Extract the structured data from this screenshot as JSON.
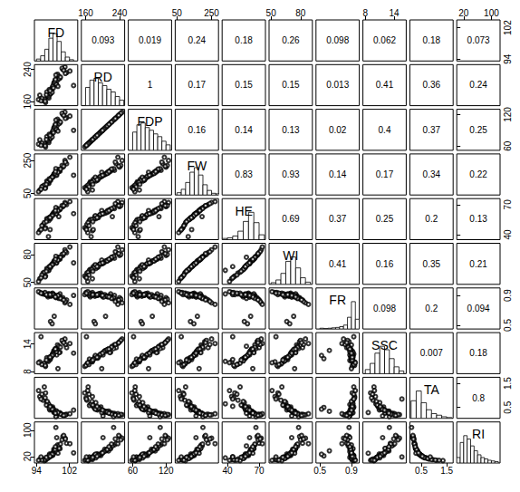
{
  "chart_data": {
    "type": "scatter_matrix",
    "marker": "open_circle",
    "color": "#000000",
    "variables": [
      {
        "name": "FD",
        "lim": [
          93.5,
          104
        ],
        "ticks": [
          94,
          102
        ],
        "values": [
          97.5,
          98.2,
          96.8,
          99.1,
          95.6,
          100.4,
          97.9,
          98.6,
          96.2,
          101.3,
          97.2,
          99.7,
          94.8,
          98.9,
          97.0,
          100.9,
          96.5,
          98.4,
          99.4,
          97.7,
          95.9,
          98.0,
          102.1,
          97.3,
          99.0,
          96.1,
          98.7,
          97.6,
          100.2,
          96.9,
          98.3,
          99.5,
          95.3,
          98.1,
          97.4,
          101.0,
          96.6,
          98.8,
          99.8,
          97.1,
          94.5,
          98.5,
          100.6,
          96.4,
          99.2,
          97.8,
          95.1,
          98.6,
          97.3,
          103.0
        ],
        "hist": {
          "bins": [
            94,
            95,
            96,
            97,
            98,
            99,
            100,
            101,
            102,
            103
          ],
          "counts": [
            3,
            8,
            18,
            35,
            42,
            30,
            14,
            6,
            2
          ]
        }
      },
      {
        "name": "RD",
        "lim": [
          150,
          252
        ],
        "ticks": [
          160,
          240
        ],
        "values": [
          182,
          205,
          171,
          228,
          163,
          240,
          196,
          214,
          158,
          232,
          188,
          219,
          176,
          201,
          169,
          246,
          184,
          209,
          223,
          192,
          166,
          199,
          236,
          178,
          212,
          161,
          226,
          186,
          243,
          173,
          207,
          217,
          168,
          194,
          180,
          230,
          175,
          203,
          221,
          190,
          165,
          211,
          238,
          177,
          198,
          183,
          162,
          215,
          187,
          200
        ],
        "hist": {
          "bins": [
            160,
            170,
            180,
            190,
            200,
            210,
            220,
            230,
            240,
            250
          ],
          "counts": [
            20,
            28,
            30,
            25,
            22,
            18,
            15,
            10,
            6
          ]
        }
      },
      {
        "name": "FDP",
        "lim": [
          52,
          130
        ],
        "ticks": [
          60,
          120
        ],
        "values": [
          76.5,
          93.8,
          68.3,
          111,
          62.3,
          120,
          87,
          100.5,
          58.5,
          114,
          81,
          104.3,
          72,
          90.8,
          66.8,
          124.5,
          78,
          96.8,
          107.3,
          84,
          64.5,
          89.3,
          117,
          73.5,
          99,
          60.8,
          109.5,
          79.5,
          122.3,
          69.8,
          95.3,
          102.8,
          66,
          85.5,
          75,
          112.5,
          71.3,
          92.3,
          105.8,
          82.5,
          63.8,
          98.3,
          118.5,
          72.8,
          88.5,
          77.3,
          61.5,
          101.3,
          80.3,
          90
        ],
        "hist": {
          "bins": [
            60,
            67.5,
            75,
            82.5,
            90,
            97.5,
            105,
            112.5,
            120,
            127.5
          ],
          "counts": [
            20,
            28,
            30,
            25,
            22,
            18,
            15,
            10,
            6
          ]
        }
      },
      {
        "name": "FW",
        "lim": [
          40,
          290
        ],
        "ticks": [
          50,
          250
        ],
        "values": [
          140,
          165,
          120,
          190,
          95,
          210,
          150,
          175,
          85,
          230,
          130,
          185,
          70,
          160,
          110,
          250,
          125,
          170,
          195,
          145,
          100,
          155,
          270,
          135,
          180,
          80,
          200,
          142,
          220,
          115,
          168,
          188,
          90,
          152,
          128,
          240,
          118,
          162,
          198,
          138,
          60,
          172,
          215,
          105,
          178,
          148,
          75,
          182,
          133,
          160
        ],
        "hist": {
          "bins": [
            50,
            75,
            100,
            125,
            150,
            175,
            200,
            225,
            250,
            275,
            300
          ],
          "counts": [
            4,
            10,
            22,
            40,
            48,
            35,
            18,
            8,
            3,
            2
          ]
        }
      },
      {
        "name": "HE",
        "lim": [
          35,
          76
        ],
        "ticks": [
          40,
          70
        ],
        "values": [
          58,
          62,
          55,
          66,
          50,
          68,
          60,
          63,
          47,
          70,
          57,
          65,
          44,
          61,
          54,
          72,
          56,
          62,
          58,
          59,
          52,
          61,
          73,
          45,
          64,
          46,
          67,
          58,
          69,
          38,
          62,
          65,
          49,
          60,
          56,
          71,
          55,
          61,
          66,
          57,
          42,
          63,
          69,
          53,
          64,
          59,
          45,
          64,
          57,
          61
        ],
        "hist": {
          "bins": [
            35,
            40,
            45,
            50,
            55,
            60,
            65,
            70,
            75
          ],
          "counts": [
            2,
            3,
            6,
            14,
            30,
            45,
            28,
            8
          ]
        }
      },
      {
        "name": "WI",
        "lim": [
          48,
          92
        ],
        "ticks": [
          50,
          80
        ],
        "values": [
          68,
          72,
          64,
          76,
          60,
          79,
          70,
          74,
          57,
          82,
          66,
          75,
          54,
          71,
          63,
          85,
          65,
          73,
          77,
          69,
          61,
          70,
          88,
          67,
          74,
          56,
          78,
          68,
          80,
          63,
          73,
          75,
          58,
          70,
          66,
          83,
          64,
          71,
          77,
          67,
          51,
          73,
          81,
          62,
          74,
          69,
          55,
          75,
          67,
          71
        ],
        "hist": {
          "bins": [
            50,
            55,
            60,
            65,
            70,
            75,
            80,
            85,
            90
          ],
          "counts": [
            3,
            8,
            20,
            42,
            50,
            30,
            12,
            4
          ]
        }
      },
      {
        "name": "FR",
        "lim": [
          0.45,
          1.0
        ],
        "ticks": [
          0.5,
          0.9
        ],
        "values": [
          0.89,
          0.91,
          0.88,
          0.9,
          0.92,
          0.87,
          0.93,
          0.89,
          0.91,
          0.84,
          0.9,
          0.92,
          0.94,
          0.88,
          0.9,
          0.8,
          0.91,
          0.89,
          0.86,
          0.92,
          0.93,
          0.9,
          0.78,
          0.91,
          0.88,
          0.94,
          0.87,
          0.9,
          0.85,
          0.92,
          0.62,
          0.89,
          0.93,
          0.91,
          0.55,
          0.82,
          0.9,
          0.88,
          0.86,
          0.92,
          0.95,
          0.89,
          0.84,
          0.91,
          0.9,
          0.52,
          0.93,
          0.88,
          0.91,
          0.9
        ],
        "hist": {
          "bins": [
            0.5,
            0.55,
            0.6,
            0.65,
            0.7,
            0.75,
            0.8,
            0.85,
            0.9,
            0.95,
            1.0
          ],
          "counts": [
            2,
            1,
            2,
            3,
            4,
            6,
            10,
            30,
            70,
            25
          ]
        }
      },
      {
        "name": "SSC",
        "lim": [
          7.5,
          16.5
        ],
        "ticks": [
          8,
          14
        ],
        "values": [
          11.2,
          12.5,
          10.4,
          13.8,
          9.6,
          14.5,
          11.8,
          12.9,
          9.1,
          13.2,
          10.9,
          12.2,
          10.1,
          11.6,
          10.7,
          15.1,
          11.0,
          12.4,
          13.5,
          11.4,
          9.8,
          12.0,
          14.1,
          10.6,
          12.7,
          9.3,
          13.0,
          11.3,
          14.8,
          10.2,
          12.6,
          12.1,
          9.5,
          11.7,
          10.8,
          13.9,
          10.3,
          12.3,
          13.3,
          11.1,
          9.9,
          12.8,
          14.3,
          10.5,
          8.6,
          11.5,
          15.6,
          12.9,
          11.1,
          12.0
        ],
        "hist": {
          "bins": [
            8,
            9,
            10,
            11,
            12,
            13,
            14,
            15,
            16
          ],
          "counts": [
            6,
            15,
            30,
            40,
            35,
            22,
            10,
            4
          ]
        }
      },
      {
        "name": "TA",
        "lim": [
          0.05,
          1.75
        ],
        "ticks": [
          0.5,
          1.5
        ],
        "values": [
          0.45,
          0.3,
          0.62,
          0.25,
          0.8,
          0.18,
          0.52,
          0.35,
          1.1,
          0.22,
          0.4,
          0.28,
          0.95,
          0.15,
          0.58,
          0.2,
          0.7,
          0.32,
          0.26,
          0.48,
          1.35,
          0.38,
          0.24,
          0.55,
          0.3,
          0.9,
          0.12,
          0.42,
          0.21,
          0.65,
          0.34,
          0.27,
          1.05,
          0.44,
          0.5,
          0.19,
          0.75,
          0.36,
          0.23,
          0.47,
          1.2,
          0.31,
          0.17,
          0.6,
          0.29,
          0.43,
          0.85,
          0.26,
          0.54,
          0.39
        ],
        "hist": {
          "bins": [
            0.1,
            0.3,
            0.5,
            0.7,
            0.9,
            1.1,
            1.3,
            1.5,
            1.7
          ],
          "counts": [
            45,
            70,
            40,
            22,
            12,
            8,
            4,
            2
          ]
        }
      },
      {
        "name": "RI",
        "lim": [
          0,
          125
        ],
        "ticks": [
          20,
          100
        ],
        "values": [
          24.9,
          41.7,
          16.8,
          55.2,
          12.0,
          80.6,
          22.7,
          36.9,
          8.3,
          60.0,
          27.3,
          43.6,
          10.6,
          77.3,
          18.4,
          75.5,
          15.7,
          38.8,
          51.9,
          23.8,
          7.3,
          31.6,
          58.8,
          19.3,
          42.3,
          10.3,
          108.3,
          26.9,
          70.5,
          15.7,
          37.1,
          44.8,
          9.0,
          26.6,
          21.6,
          73.2,
          13.7,
          34.2,
          57.8,
          23.6,
          8.3,
          41.3,
          84.1,
          17.5,
          29.7,
          26.7,
          18.4,
          49.6,
          20.6,
          30.8
        ],
        "hist": {
          "bins": [
            0,
            10,
            20,
            30,
            40,
            50,
            60,
            70,
            80,
            90,
            100,
            110,
            120
          ],
          "counts": [
            8,
            30,
            40,
            35,
            25,
            18,
            12,
            8,
            6,
            4,
            3,
            2
          ]
        }
      }
    ],
    "correlations": [
      [
        0.093,
        0.019,
        0.24,
        0.18,
        0.26,
        0.098,
        0.062,
        0.18,
        0.073
      ],
      [
        1,
        0.17,
        0.15,
        0.15,
        0.013,
        0.41,
        0.36,
        0.24
      ],
      [
        0.16,
        0.14,
        0.13,
        0.02,
        0.4,
        0.37,
        0.25
      ],
      [
        0.83,
        0.93,
        0.14,
        0.17,
        0.34,
        0.22
      ],
      [
        0.69,
        0.37,
        0.25,
        0.2,
        0.13
      ],
      [
        0.41,
        0.16,
        0.35,
        0.21
      ],
      [
        0.098,
        0.2,
        0.094
      ],
      [
        0.007,
        0.18
      ],
      [
        0.8
      ]
    ]
  }
}
